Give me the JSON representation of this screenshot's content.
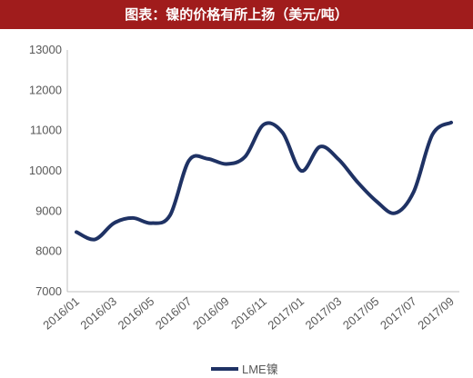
{
  "chart_data": {
    "type": "line",
    "title": "图表：镍的价格有所上扬（美元/吨）",
    "xlabel": "",
    "ylabel": "",
    "ylim": [
      7000,
      13000
    ],
    "yticks": [
      "7000",
      "8000",
      "9000",
      "10000",
      "11000",
      "12000",
      "13000"
    ],
    "xticks": [
      "2016/01",
      "2016/03",
      "2016/05",
      "2016/07",
      "2016/09",
      "2016/11",
      "2017/01",
      "2017/03",
      "2017/05",
      "2017/07",
      "2017/09"
    ],
    "grid": false,
    "legend_position": "bottom",
    "series": [
      {
        "name": "LME镍",
        "color": "#1f3264",
        "x": [
          "2016/01",
          "2016/02",
          "2016/03",
          "2016/04",
          "2016/05",
          "2016/06",
          "2016/07",
          "2016/08",
          "2016/09",
          "2016/10",
          "2016/11",
          "2016/12",
          "2017/01",
          "2017/02",
          "2017/03",
          "2017/04",
          "2017/05",
          "2017/06",
          "2017/07",
          "2017/08",
          "2017/09"
        ],
        "values": [
          8480,
          8300,
          8700,
          8830,
          8700,
          8900,
          10250,
          10300,
          10170,
          10350,
          11150,
          10950,
          10000,
          10600,
          10280,
          9720,
          9250,
          8950,
          9480,
          10900,
          11200
        ]
      }
    ]
  }
}
